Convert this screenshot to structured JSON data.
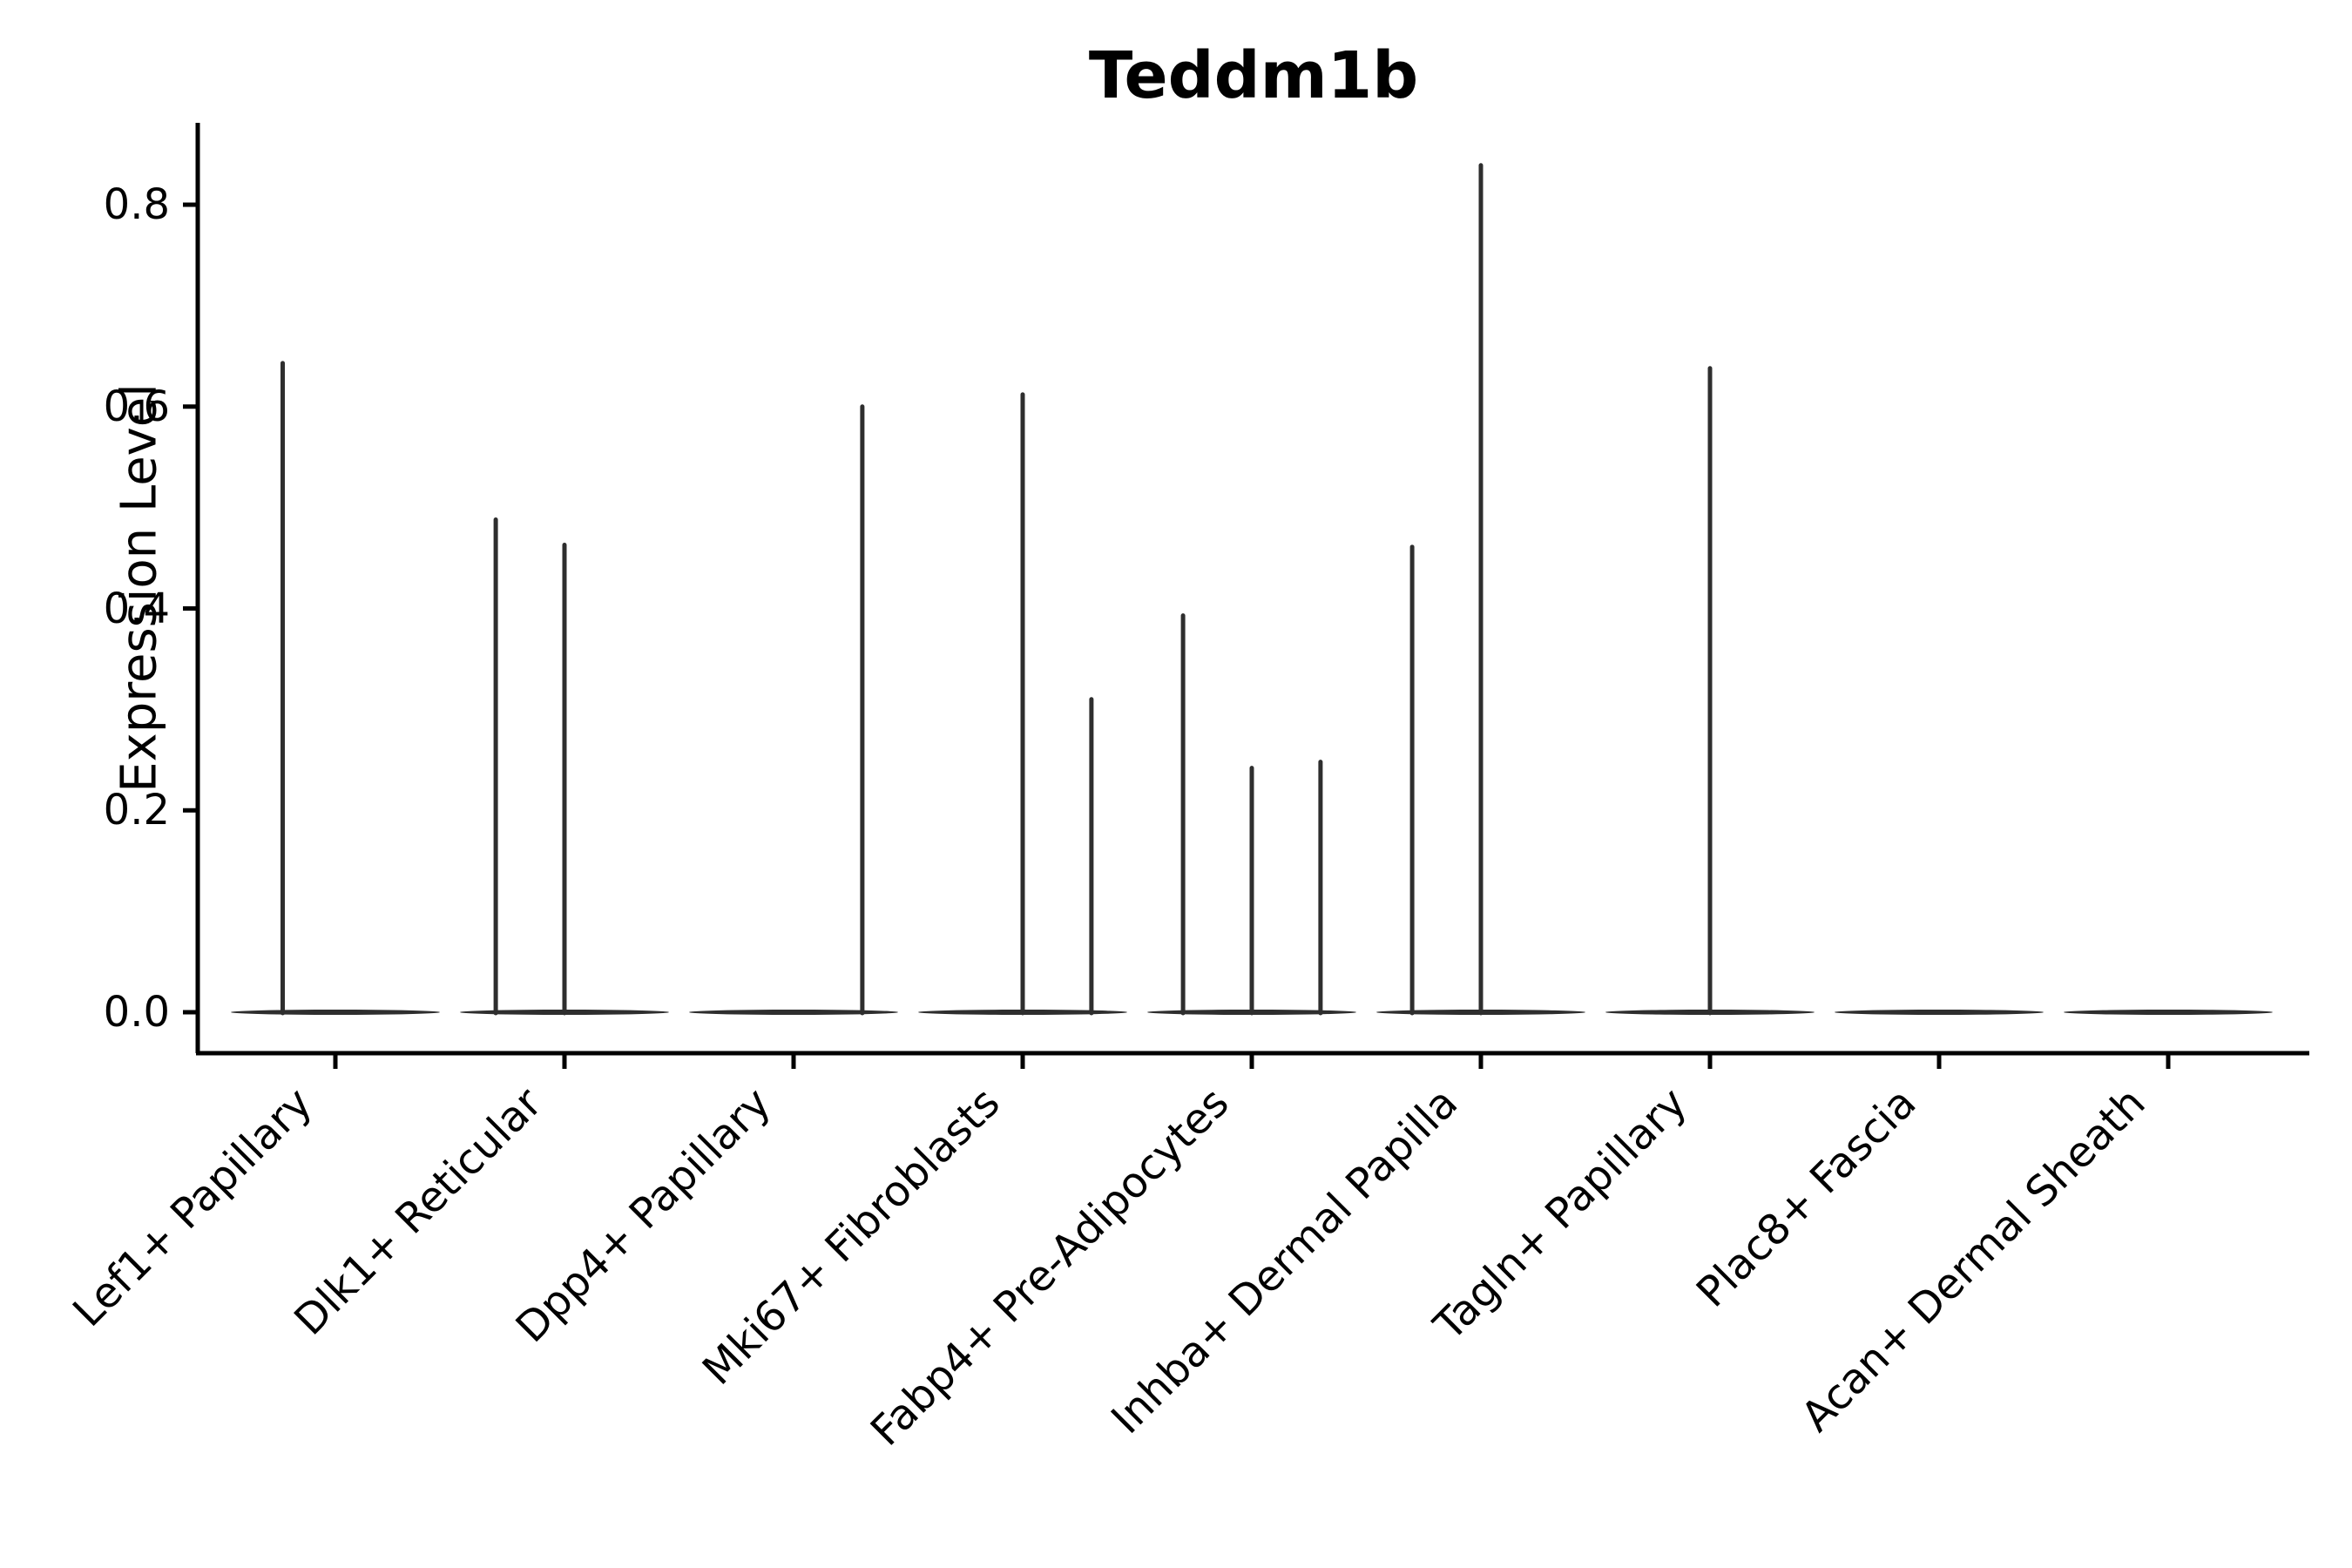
{
  "title": "Teddm1b",
  "y_axis": {
    "label": "Expression Level",
    "tick_labels": [
      "0.0",
      "0.2",
      "0.4",
      "0.6",
      "0.8"
    ]
  },
  "chart_data": {
    "type": "violin",
    "title": "Teddm1b",
    "xlabel": "",
    "ylabel": "Expression Level",
    "ylim": [
      0,
      0.88
    ],
    "yticks": [
      0.0,
      0.2,
      0.4,
      0.6,
      0.8
    ],
    "ytick_labels": [
      "0.0",
      "0.2",
      "0.4",
      "0.6",
      "0.8"
    ],
    "grid": false,
    "legend": "none",
    "categories": [
      "Lef1+ Papillary",
      "Dlk1+ Reticular",
      "Dpp4+ Papillary",
      "Mki67+ Fibroblasts",
      "Fabp4+ Pre-Adipocytes",
      "Inhba+ Dermal Papilla",
      "Tagln+ Papillary",
      "Plac8+ Fascia",
      "Acan+ Dermal Sheath"
    ],
    "description": "Zero-inflated expression violins: each cell type shows a flat violin at 0 with thin vertical spikes reaching the expression maxima of the few expressing cells.",
    "series": [
      {
        "name": "Lef1+ Papillary",
        "baseline_value": 0.0,
        "spikes": [
          {
            "pos": -0.23,
            "max": 0.643
          }
        ]
      },
      {
        "name": "Dlk1+ Reticular",
        "baseline_value": 0.0,
        "spikes": [
          {
            "pos": -0.3,
            "max": 0.488
          },
          {
            "pos": 0.0,
            "max": 0.463
          }
        ]
      },
      {
        "name": "Dpp4+ Papillary",
        "baseline_value": 0.0,
        "spikes": [
          {
            "pos": 0.3,
            "max": 0.6
          }
        ]
      },
      {
        "name": "Mki67+ Fibroblasts",
        "baseline_value": 0.0,
        "spikes": [
          {
            "pos": 0.0,
            "max": 0.612
          },
          {
            "pos": 0.3,
            "max": 0.31
          }
        ]
      },
      {
        "name": "Fabp4+ Pre-Adipocytes",
        "baseline_value": 0.0,
        "spikes": [
          {
            "pos": -0.3,
            "max": 0.393
          },
          {
            "pos": 0.0,
            "max": 0.242
          },
          {
            "pos": 0.3,
            "max": 0.248
          }
        ]
      },
      {
        "name": "Inhba+ Dermal Papilla",
        "baseline_value": 0.0,
        "spikes": [
          {
            "pos": -0.3,
            "max": 0.461
          },
          {
            "pos": 0.0,
            "max": 0.839
          }
        ]
      },
      {
        "name": "Tagln+ Papillary",
        "baseline_value": 0.0,
        "spikes": [
          {
            "pos": 0.0,
            "max": 0.638
          }
        ]
      },
      {
        "name": "Plac8+ Fascia",
        "baseline_value": 0.0,
        "spikes": []
      },
      {
        "name": "Acan+ Dermal Sheath",
        "baseline_value": 0.0,
        "spikes": []
      }
    ],
    "colors": {
      "violin": "#2e2e2e",
      "axis": "#000000",
      "text": "#000000",
      "background": "#ffffff"
    }
  }
}
